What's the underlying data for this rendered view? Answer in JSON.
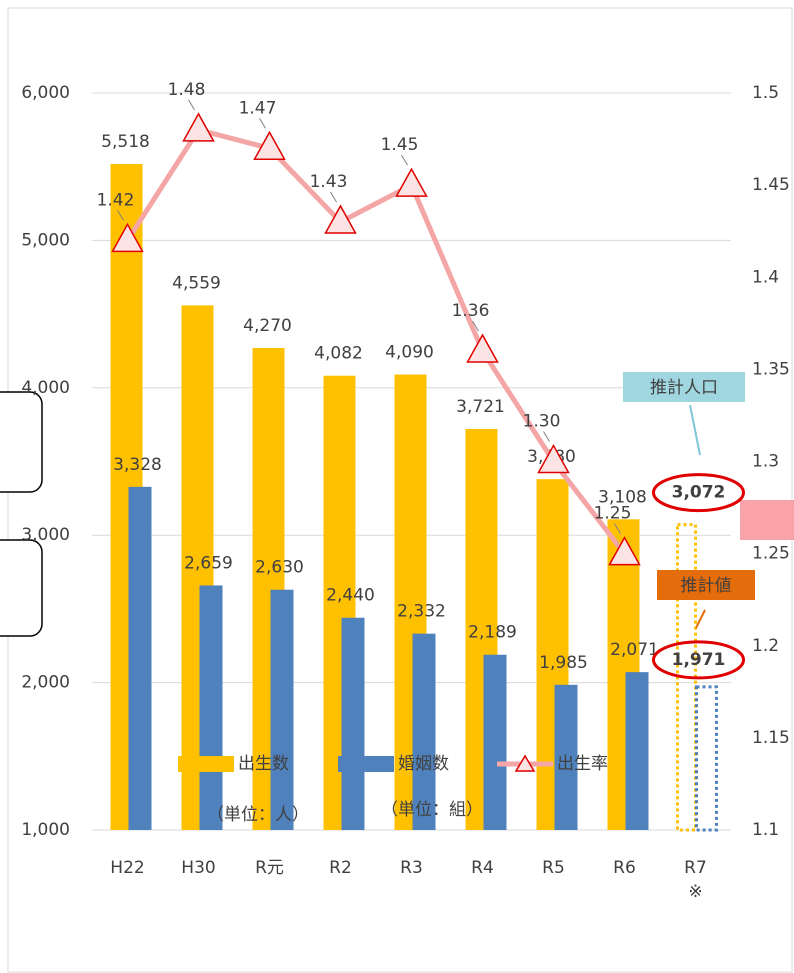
{
  "chart_data": {
    "type": "bar_line",
    "categories": [
      "H22",
      "H30",
      "R元",
      "R2",
      "R3",
      "R4",
      "R5",
      "R6",
      "R7"
    ],
    "series": [
      {
        "name": "出生数",
        "color": "#ffc000",
        "values": [
          5518,
          4559,
          4270,
          4082,
          4090,
          3721,
          3380,
          3108,
          3072
        ],
        "value_labels": [
          "5,518",
          "4,559",
          "4,270",
          "4,082",
          "4,090",
          "3,721",
          "3,380",
          "3,108",
          "3,072"
        ]
      },
      {
        "name": "婚姻数",
        "color": "#4f81bd",
        "values": [
          3328,
          2659,
          2630,
          2440,
          2332,
          2189,
          1985,
          2071,
          1971
        ],
        "value_labels": [
          "3,328",
          "2,659",
          "2,630",
          "2,440",
          "2,332",
          "2,189",
          "1,985",
          "2,071",
          "1,971"
        ]
      },
      {
        "name": "出生率",
        "color": "#f4a6a6",
        "axis": "y2",
        "values": [
          1.42,
          1.48,
          1.47,
          1.43,
          1.45,
          1.36,
          1.3,
          1.25,
          null
        ],
        "value_labels": [
          "1.42",
          "1.48",
          "1.47",
          "1.43",
          "1.45",
          "1.36",
          "1.30",
          "1.25",
          null
        ]
      }
    ],
    "ylim": [
      1000,
      6000
    ],
    "yticks": [
      {
        "value": 1000,
        "label": "1,000"
      },
      {
        "value": 2000,
        "label": "2,000"
      },
      {
        "value": 3000,
        "label": "3,000"
      },
      {
        "value": 4000,
        "label": "4,000"
      },
      {
        "value": 5000,
        "label": "5,000"
      },
      {
        "value": 6000,
        "label": "6,000"
      }
    ],
    "y2lim": [
      1.1,
      1.5
    ],
    "y2ticks": [
      1.1,
      1.15,
      1.2,
      1.25,
      1.3,
      1.35,
      1.4,
      1.45,
      1.5
    ],
    "grid": true,
    "units": [
      "（単位：人）",
      "（単位：組）"
    ],
    "annotations": [
      "推計人口",
      "推計値",
      "※"
    ]
  }
}
